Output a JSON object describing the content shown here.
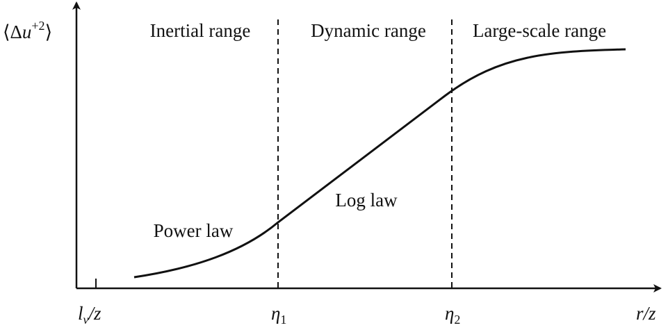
{
  "y_label": {
    "open": "⟨Δ",
    "var": "u",
    "sup": "+2",
    "close": "⟩"
  },
  "x_label": {
    "r": "r",
    "slash": "/",
    "z": "z"
  },
  "regions": [
    "Inertial range",
    "Dynamic range",
    "Large-scale range"
  ],
  "curve_labels": [
    "Power law",
    "Log law"
  ],
  "x_marks": [
    {
      "main": "l",
      "sub": "v",
      "rest": "/z"
    },
    {
      "main": "η",
      "sub": "1"
    },
    {
      "main": "η",
      "sub": "2"
    }
  ]
}
